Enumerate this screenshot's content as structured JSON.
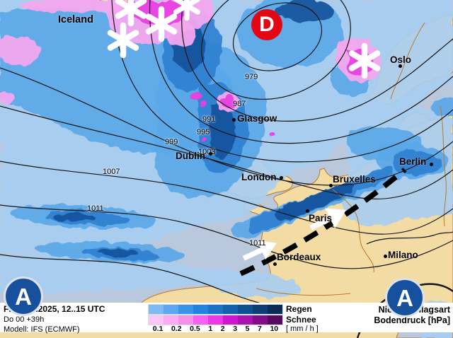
{
  "map": {
    "region_label": "Iceland",
    "cities": [
      {
        "name": "Oslo"
      },
      {
        "name": "Glasgow"
      },
      {
        "name": "Dublin"
      },
      {
        "name": "London"
      },
      {
        "name": "Bruxelles"
      },
      {
        "name": "Paris"
      },
      {
        "name": "Berlin"
      },
      {
        "name": "Milano"
      },
      {
        "name": "Bordeaux"
      }
    ],
    "isobar_labels": [
      "979",
      "987",
      "991",
      "995",
      "999",
      "1003",
      "1007",
      "1011",
      "1011"
    ],
    "pressure_markers": {
      "low": "D",
      "high": "A"
    },
    "colors": {
      "sea": "#b9c8dc",
      "land": "#f3dba4",
      "coast_border": "#b9792b",
      "low_marker": "#e30613",
      "high_marker": "#17519e",
      "front_line": "#000000"
    }
  },
  "legend": {
    "line1": "Fr 31.01.2025, 12..15 UTC",
    "line2": "Do 00 +39h",
    "line3": "Modell: IFS (ECMWF)",
    "values": [
      "0.1",
      "0.2",
      "0.5",
      "1",
      "2",
      "3",
      "5",
      "7",
      "10"
    ],
    "rain_label": "Regen",
    "snow_label": "Schnee",
    "unit": "[ mm / h ]",
    "right_line1": "Niederschlagsart",
    "right_line2": "Bodendruck [hPa]",
    "rain_colors": [
      "#7fbbf3",
      "#5ca7ef",
      "#3b93e8",
      "#2383de",
      "#1b72c6",
      "#1562aa",
      "#10508e",
      "#0b3e71",
      "#082c53"
    ],
    "snow_colors": [
      "#fac6f3",
      "#f7adef",
      "#f590eb",
      "#f661f2",
      "#e93ae4",
      "#cf16cf",
      "#a912ab",
      "#810d88",
      "#570a5f"
    ]
  }
}
